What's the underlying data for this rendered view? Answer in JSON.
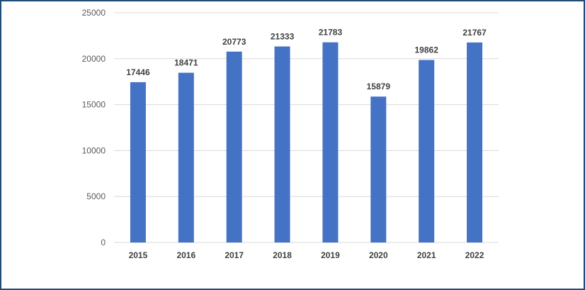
{
  "chart_data": {
    "type": "bar",
    "categories": [
      "2015",
      "2016",
      "2017",
      "2018",
      "2019",
      "2020",
      "2021",
      "2022"
    ],
    "values": [
      17446,
      18471,
      20773,
      21333,
      21783,
      15879,
      19862,
      21767
    ],
    "ylim": [
      0,
      25000
    ],
    "yticks": [
      "0",
      "5000",
      "10000",
      "15000",
      "20000",
      "25000"
    ],
    "grid": true,
    "bar_color": "#4472c4",
    "grid_color": "#d9d9d9",
    "border_color": "#1f4e79",
    "data_labels": true
  }
}
